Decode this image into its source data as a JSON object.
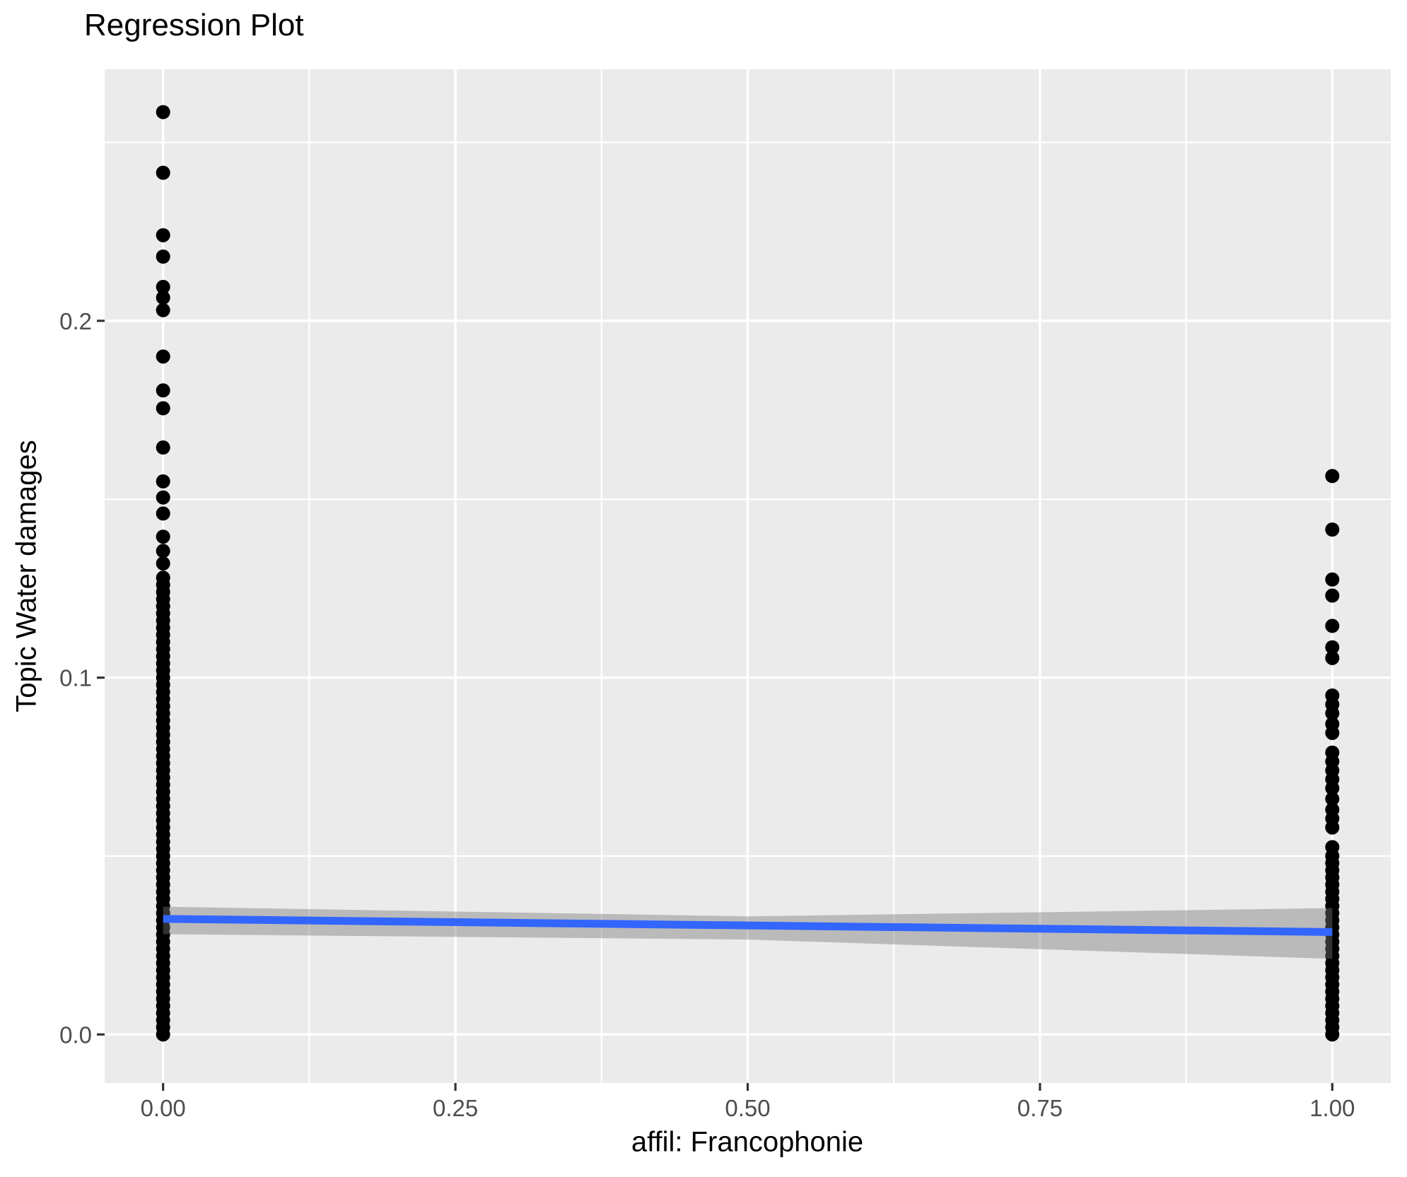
{
  "colors": {
    "panel_bg": "#EBEBEB",
    "grid": "#FFFFFF",
    "point": "#000000",
    "regression_line": "#3366FF",
    "confidence_band": "rgba(120,120,120,0.42)",
    "tick_text": "#4D4D4D",
    "tick_mark": "#333333",
    "title_text": "#000000"
  },
  "chart_data": {
    "type": "scatter",
    "title": "Regression Plot",
    "xlabel": "affil: Francophonie",
    "ylabel": "Topic Water damages",
    "x_ticks": [
      0,
      0.25,
      0.5,
      0.75,
      1
    ],
    "x_tick_labels": [
      "0.00",
      "0.25",
      "0.50",
      "0.75",
      "1.00"
    ],
    "y_ticks": [
      0,
      0.1,
      0.2
    ],
    "y_tick_labels": [
      "0.0",
      "0.1",
      "0.2"
    ],
    "x_minor_gridlines": [
      0.125,
      0.375,
      0.625,
      0.875
    ],
    "y_minor_gridlines": [
      0.05,
      0.15,
      0.25
    ],
    "xlim": [
      -0.05,
      1.05
    ],
    "ylim": [
      -0.0136,
      0.2705
    ],
    "grid": true,
    "legend": false,
    "point_radius_px": 10,
    "series": [
      {
        "name": "affil = 0 observations",
        "x": 0,
        "y_sparse": [
          0.2585,
          0.2415,
          0.224,
          0.218,
          0.2095,
          0.2065,
          0.203,
          0.19,
          0.1805,
          0.1755,
          0.1645,
          0.155,
          0.1505,
          0.146,
          0.1395,
          0.1355,
          0.132
        ],
        "y_dense": {
          "min": 0.0,
          "max": 0.129,
          "step": 0.002
        }
      },
      {
        "name": "affil = 1 observations",
        "x": 1,
        "y_sparse": [
          0.1565,
          0.1415,
          0.1275,
          0.123,
          0.1145,
          0.1085,
          0.1055,
          0.095,
          0.0925,
          0.09,
          0.087,
          0.0845,
          0.079,
          0.0765,
          0.074,
          0.0715,
          0.069,
          0.066,
          0.063,
          0.0605,
          0.058,
          0.0525,
          0.05
        ],
        "y_dense": {
          "min": 0.0,
          "max": 0.048,
          "step": 0.002
        }
      }
    ],
    "regression_line": {
      "x": [
        0,
        1
      ],
      "y": [
        0.0324,
        0.0287
      ]
    },
    "confidence_band": {
      "x": [
        0,
        0.5,
        1
      ],
      "upper": [
        0.0358,
        0.0331,
        0.0354
      ],
      "lower": [
        0.0281,
        0.0266,
        0.0212
      ]
    }
  }
}
